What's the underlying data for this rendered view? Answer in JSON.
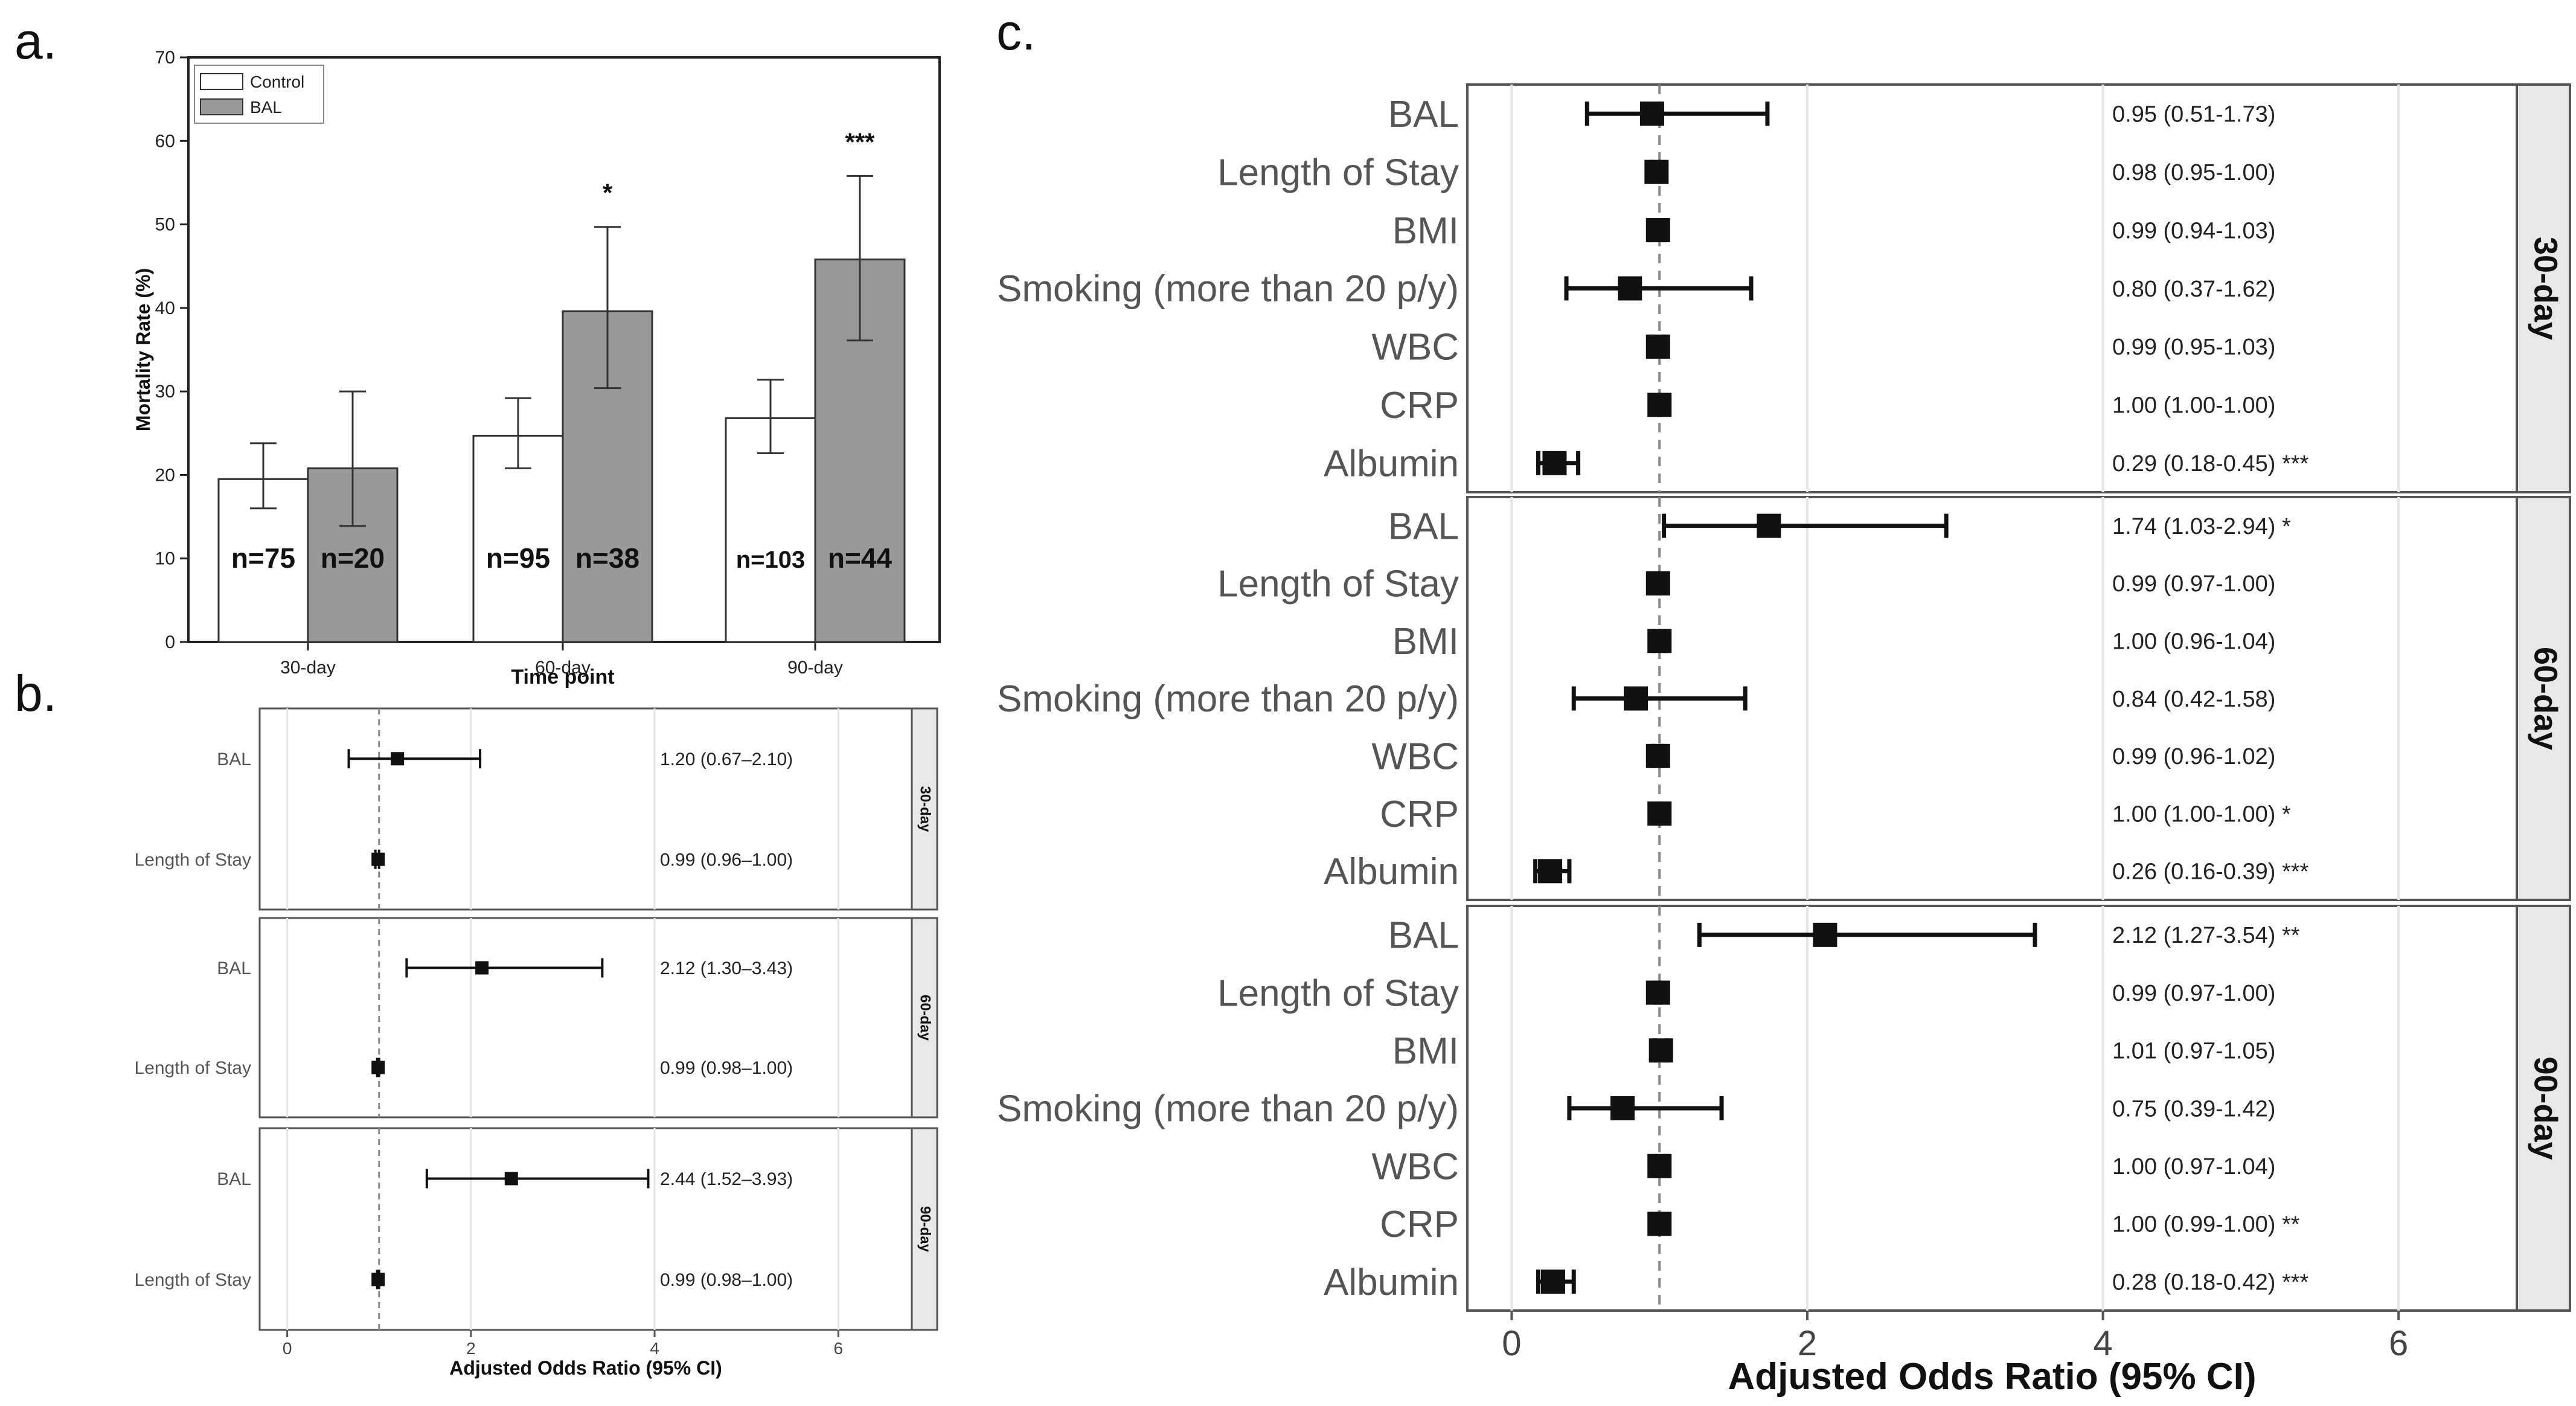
{
  "panels": {
    "a": "a.",
    "b": "b.",
    "c": "c."
  },
  "colors": {
    "control": "#ffffff",
    "bal": "#999999",
    "axis": "#222222",
    "grid": "#e6e6e6",
    "strip": "#e8e8e8"
  },
  "chart_data": [
    {
      "id": "a",
      "type": "bar",
      "title": "",
      "xlabel": "Time point",
      "ylabel": "Mortality Rate (%)",
      "ylim": [
        0,
        70
      ],
      "yticks": [
        0,
        10,
        20,
        30,
        40,
        50,
        60,
        70
      ],
      "categories": [
        "30-day",
        "60-day",
        "90-day"
      ],
      "legend": [
        "Control",
        "BAL"
      ],
      "legend_position": "top-left",
      "series": [
        {
          "name": "Control",
          "values": [
            19.5,
            24.7,
            26.8
          ],
          "err_low": [
            16.0,
            20.8,
            22.6
          ],
          "err_high": [
            23.8,
            29.2,
            31.4
          ],
          "n_labels": [
            "n=75",
            "n=95",
            "n=103"
          ],
          "sig": [
            "",
            "",
            ""
          ]
        },
        {
          "name": "BAL",
          "values": [
            20.8,
            39.6,
            45.8
          ],
          "err_low": [
            13.9,
            30.4,
            36.1
          ],
          "err_high": [
            30.0,
            49.7,
            55.8
          ],
          "n_labels": [
            "n=20",
            "n=38",
            "n=44"
          ],
          "sig": [
            "",
            "*",
            "***"
          ]
        }
      ]
    },
    {
      "id": "b",
      "type": "forest",
      "xlabel": "Adjusted Odds Ratio (95% CI)",
      "xlim": [
        -0.3,
        6.8
      ],
      "xticks": [
        0,
        2,
        4,
        6
      ],
      "reference": 1,
      "facets": [
        {
          "label": "30-day",
          "rows": [
            {
              "label": "BAL",
              "or": 1.2,
              "lo": 0.67,
              "hi": 2.1,
              "text": "1.20 (0.67–2.10)"
            },
            {
              "label": "Length of Stay",
              "or": 0.99,
              "lo": 0.96,
              "hi": 1.0,
              "text": "0.99 (0.96–1.00)"
            }
          ]
        },
        {
          "label": "60-day",
          "rows": [
            {
              "label": "BAL",
              "or": 2.12,
              "lo": 1.3,
              "hi": 3.43,
              "text": "2.12 (1.30–3.43)"
            },
            {
              "label": "Length of Stay",
              "or": 0.99,
              "lo": 0.98,
              "hi": 1.0,
              "text": "0.99 (0.98–1.00)"
            }
          ]
        },
        {
          "label": "90-day",
          "rows": [
            {
              "label": "BAL",
              "or": 2.44,
              "lo": 1.52,
              "hi": 3.93,
              "text": "2.44 (1.52–3.93)"
            },
            {
              "label": "Length of Stay",
              "or": 0.99,
              "lo": 0.98,
              "hi": 1.0,
              "text": "0.99 (0.98–1.00)"
            }
          ]
        }
      ]
    },
    {
      "id": "c",
      "type": "forest",
      "xlabel": "Adjusted Odds Ratio (95% CI)",
      "xlim": [
        -0.3,
        6.8
      ],
      "xticks": [
        0,
        2,
        4,
        6
      ],
      "reference": 1,
      "facets": [
        {
          "label": "30-day",
          "rows": [
            {
              "label": "BAL",
              "or": 0.95,
              "lo": 0.51,
              "hi": 1.73,
              "text": "0.95 (0.51-1.73)"
            },
            {
              "label": "Length of Stay",
              "or": 0.98,
              "lo": 0.95,
              "hi": 1.0,
              "text": "0.98 (0.95-1.00)"
            },
            {
              "label": "BMI",
              "or": 0.99,
              "lo": 0.94,
              "hi": 1.03,
              "text": "0.99 (0.94-1.03)"
            },
            {
              "label": "Smoking (more than 20 p/y)",
              "or": 0.8,
              "lo": 0.37,
              "hi": 1.62,
              "text": "0.80 (0.37-1.62)"
            },
            {
              "label": "WBC",
              "or": 0.99,
              "lo": 0.95,
              "hi": 1.03,
              "text": "0.99 (0.95-1.03)"
            },
            {
              "label": "CRP",
              "or": 1.0,
              "lo": 1.0,
              "hi": 1.0,
              "text": "1.00 (1.00-1.00)"
            },
            {
              "label": "Albumin",
              "or": 0.29,
              "lo": 0.18,
              "hi": 0.45,
              "text": "0.29 (0.18-0.45) ***"
            }
          ]
        },
        {
          "label": "60-day",
          "rows": [
            {
              "label": "BAL",
              "or": 1.74,
              "lo": 1.03,
              "hi": 2.94,
              "text": "1.74 (1.03-2.94) *"
            },
            {
              "label": "Length of Stay",
              "or": 0.99,
              "lo": 0.97,
              "hi": 1.0,
              "text": "0.99 (0.97-1.00)"
            },
            {
              "label": "BMI",
              "or": 1.0,
              "lo": 0.96,
              "hi": 1.04,
              "text": "1.00 (0.96-1.04)"
            },
            {
              "label": "Smoking (more than 20 p/y)",
              "or": 0.84,
              "lo": 0.42,
              "hi": 1.58,
              "text": "0.84 (0.42-1.58)"
            },
            {
              "label": "WBC",
              "or": 0.99,
              "lo": 0.96,
              "hi": 1.02,
              "text": "0.99 (0.96-1.02)"
            },
            {
              "label": "CRP",
              "or": 1.0,
              "lo": 1.0,
              "hi": 1.0,
              "text": "1.00 (1.00-1.00) *"
            },
            {
              "label": "Albumin",
              "or": 0.26,
              "lo": 0.16,
              "hi": 0.39,
              "text": "0.26 (0.16-0.39) ***"
            }
          ]
        },
        {
          "label": "90-day",
          "rows": [
            {
              "label": "BAL",
              "or": 2.12,
              "lo": 1.27,
              "hi": 3.54,
              "text": "2.12 (1.27-3.54) **"
            },
            {
              "label": "Length of Stay",
              "or": 0.99,
              "lo": 0.97,
              "hi": 1.0,
              "text": "0.99 (0.97-1.00)"
            },
            {
              "label": "BMI",
              "or": 1.01,
              "lo": 0.97,
              "hi": 1.05,
              "text": "1.01 (0.97-1.05)"
            },
            {
              "label": "Smoking (more than 20 p/y)",
              "or": 0.75,
              "lo": 0.39,
              "hi": 1.42,
              "text": "0.75 (0.39-1.42)"
            },
            {
              "label": "WBC",
              "or": 1.0,
              "lo": 0.97,
              "hi": 1.04,
              "text": "1.00 (0.97-1.04)"
            },
            {
              "label": "CRP",
              "or": 1.0,
              "lo": 0.99,
              "hi": 1.0,
              "text": "1.00 (0.99-1.00) **"
            },
            {
              "label": "Albumin",
              "or": 0.28,
              "lo": 0.18,
              "hi": 0.42,
              "text": "0.28 (0.18-0.42) ***"
            }
          ]
        }
      ]
    }
  ]
}
